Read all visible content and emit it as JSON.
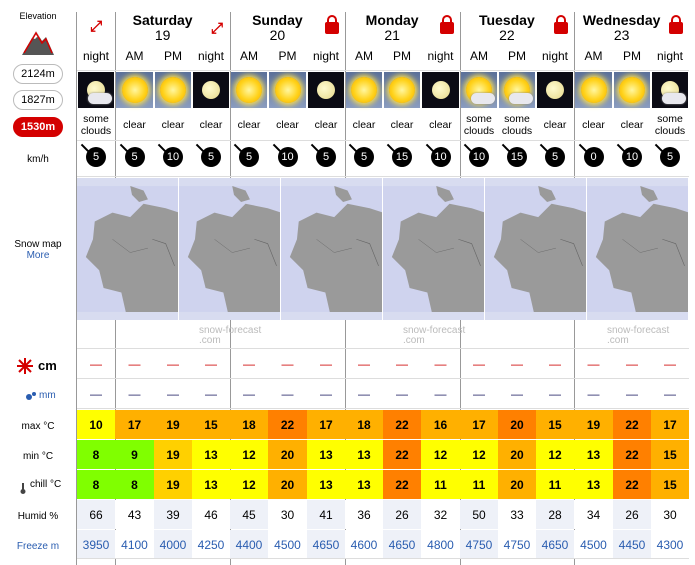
{
  "sidebar": {
    "elevation_label": "Elevation",
    "elevations": [
      "2124m",
      "1827m",
      "1530m"
    ],
    "active_elevation": "1530m",
    "wind_unit": "km/h",
    "snow_map_label": "Snow map",
    "snow_map_more": "More",
    "snow_unit": "cm",
    "rain_unit": "mm",
    "max_label": "max °C",
    "min_label": "min °C",
    "chill_label": "chill °C",
    "humid_label": "Humid %",
    "freeze_label": "Freeze m"
  },
  "days": [
    {
      "name": "Saturday",
      "date": "19"
    },
    {
      "name": "Sunday",
      "date": "20"
    },
    {
      "name": "Monday",
      "date": "21"
    },
    {
      "name": "Tuesday",
      "date": "22"
    },
    {
      "name": "Wednesday",
      "date": "23"
    }
  ],
  "periods": [
    {
      "label": "night",
      "icon": "some-clouds-night",
      "cond": "some clouds",
      "wind": "5",
      "snow": "—",
      "rain": "—",
      "max": "10",
      "min": "8",
      "chill": "8",
      "humid": "66",
      "freeze": "3950",
      "max_color": "#ffff00",
      "min_color": "#80ff00",
      "chill_color": "#80ff00"
    },
    {
      "label": "AM",
      "icon": "clear-day",
      "cond": "clear",
      "wind": "5",
      "snow": "—",
      "rain": "—",
      "max": "17",
      "min": "9",
      "chill": "8",
      "humid": "43",
      "freeze": "4100",
      "max_color": "#ffb000",
      "min_color": "#80ff00",
      "chill_color": "#80ff00"
    },
    {
      "label": "PM",
      "icon": "clear-day",
      "cond": "clear",
      "wind": "10",
      "snow": "—",
      "rain": "—",
      "max": "19",
      "min": "19",
      "chill": "19",
      "humid": "39",
      "freeze": "4000",
      "max_color": "#ffb000",
      "min_color": "#ffd000",
      "chill_color": "#ffd000"
    },
    {
      "label": "night",
      "icon": "clear-night",
      "cond": "clear",
      "wind": "5",
      "snow": "—",
      "rain": "—",
      "max": "15",
      "min": "13",
      "chill": "13",
      "humid": "46",
      "freeze": "4250",
      "max_color": "#ffb000",
      "min_color": "#ffff00",
      "chill_color": "#ffff00"
    },
    {
      "label": "AM",
      "icon": "clear-day",
      "cond": "clear",
      "wind": "5",
      "snow": "—",
      "rain": "—",
      "max": "18",
      "min": "12",
      "chill": "12",
      "humid": "45",
      "freeze": "4400",
      "max_color": "#ffb000",
      "min_color": "#ffff00",
      "chill_color": "#ffff00"
    },
    {
      "label": "PM",
      "icon": "clear-day",
      "cond": "clear",
      "wind": "10",
      "snow": "—",
      "rain": "—",
      "max": "22",
      "min": "20",
      "chill": "20",
      "humid": "30",
      "freeze": "4500",
      "max_color": "#ff8000",
      "min_color": "#ffb000",
      "chill_color": "#ffb000"
    },
    {
      "label": "night",
      "icon": "clear-night",
      "cond": "clear",
      "wind": "5",
      "snow": "—",
      "rain": "—",
      "max": "17",
      "min": "13",
      "chill": "13",
      "humid": "41",
      "freeze": "4650",
      "max_color": "#ffb000",
      "min_color": "#ffff00",
      "chill_color": "#ffff00"
    },
    {
      "label": "AM",
      "icon": "clear-day",
      "cond": "clear",
      "wind": "5",
      "snow": "—",
      "rain": "—",
      "max": "18",
      "min": "13",
      "chill": "13",
      "humid": "36",
      "freeze": "4600",
      "max_color": "#ffb000",
      "min_color": "#ffff00",
      "chill_color": "#ffff00"
    },
    {
      "label": "PM",
      "icon": "clear-day",
      "cond": "clear",
      "wind": "15",
      "snow": "—",
      "rain": "—",
      "max": "22",
      "min": "22",
      "chill": "22",
      "humid": "26",
      "freeze": "4650",
      "max_color": "#ff8000",
      "min_color": "#ff8000",
      "chill_color": "#ff8000"
    },
    {
      "label": "night",
      "icon": "clear-night",
      "cond": "clear",
      "wind": "10",
      "snow": "—",
      "rain": "—",
      "max": "16",
      "min": "12",
      "chill": "11",
      "humid": "32",
      "freeze": "4800",
      "max_color": "#ffb000",
      "min_color": "#ffff00",
      "chill_color": "#ffff00"
    },
    {
      "label": "AM",
      "icon": "some-clouds-day",
      "cond": "some clouds",
      "wind": "10",
      "snow": "—",
      "rain": "—",
      "max": "17",
      "min": "12",
      "chill": "11",
      "humid": "50",
      "freeze": "4750",
      "max_color": "#ffb000",
      "min_color": "#ffff00",
      "chill_color": "#ffff00"
    },
    {
      "label": "PM",
      "icon": "some-clouds-day",
      "cond": "some clouds",
      "wind": "15",
      "snow": "—",
      "rain": "—",
      "max": "20",
      "min": "20",
      "chill": "20",
      "humid": "33",
      "freeze": "4750",
      "max_color": "#ff8000",
      "min_color": "#ffb000",
      "chill_color": "#ffb000"
    },
    {
      "label": "night",
      "icon": "clear-night",
      "cond": "clear",
      "wind": "5",
      "snow": "—",
      "rain": "—",
      "max": "15",
      "min": "12",
      "chill": "11",
      "humid": "28",
      "freeze": "4650",
      "max_color": "#ffb000",
      "min_color": "#ffff00",
      "chill_color": "#ffff00"
    },
    {
      "label": "AM",
      "icon": "clear-day",
      "cond": "clear",
      "wind": "0",
      "snow": "—",
      "rain": "—",
      "max": "19",
      "min": "13",
      "chill": "13",
      "humid": "34",
      "freeze": "4500",
      "max_color": "#ffb000",
      "min_color": "#ffff00",
      "chill_color": "#ffff00"
    },
    {
      "label": "PM",
      "icon": "clear-day",
      "cond": "clear",
      "wind": "10",
      "snow": "—",
      "rain": "—",
      "max": "22",
      "min": "22",
      "chill": "22",
      "humid": "26",
      "freeze": "4450",
      "max_color": "#ff8000",
      "min_color": "#ff8000",
      "chill_color": "#ff8000"
    },
    {
      "label": "night",
      "icon": "some-clouds-night",
      "cond": "some clouds",
      "wind": "5",
      "snow": "—",
      "rain": "—",
      "max": "17",
      "min": "15",
      "chill": "15",
      "humid": "30",
      "freeze": "4300",
      "max_color": "#ffb000",
      "min_color": "#ffb000",
      "chill_color": "#ffb000"
    }
  ],
  "map_watermark": {
    "line1": "snow-forecast",
    "line2": ".com"
  }
}
